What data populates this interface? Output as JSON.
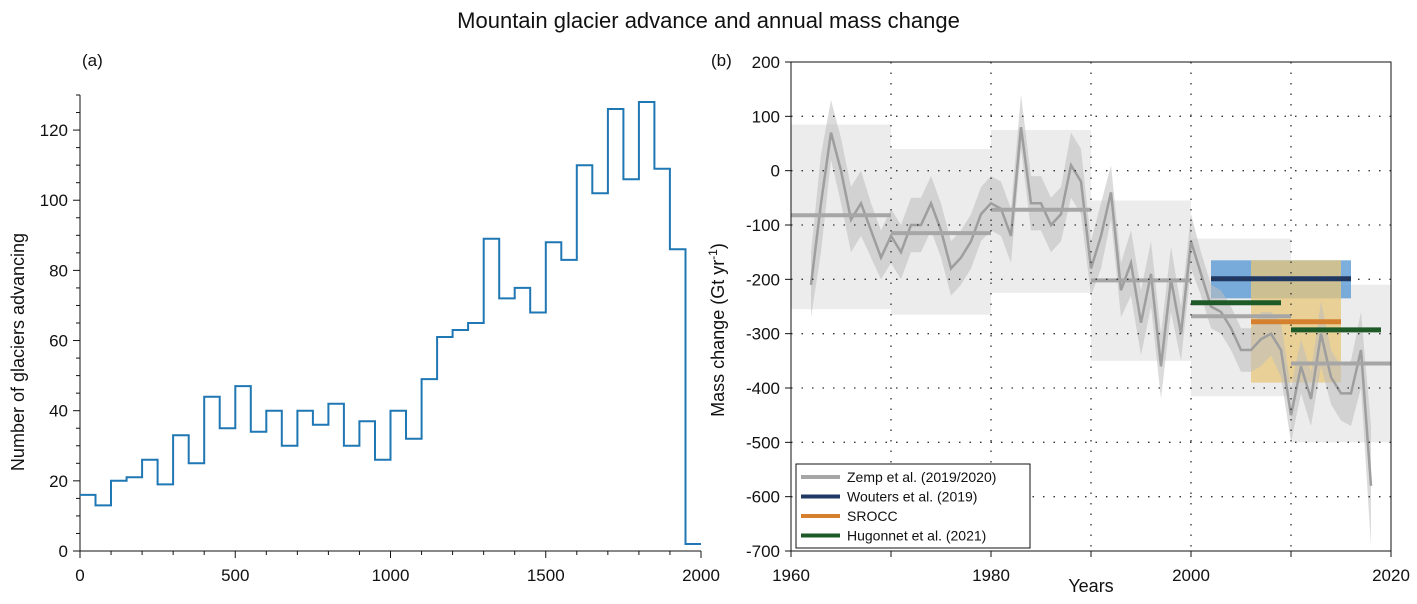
{
  "title": "Mountain glacier advance and annual mass change",
  "colors": {
    "advance_line": "#1f77b4",
    "zemp": "#a6a6a6",
    "wouters": "#1f3864",
    "wouters_band": "#5b9bd5",
    "srocc": "#d4802f",
    "srocc_band": "#e8c77a",
    "hugonnet": "#1e5a28",
    "band_light": "#ececec"
  },
  "chart_data": [
    {
      "type": "line",
      "step": true,
      "panel_label": "(a)",
      "xlabel": "",
      "ylabel": "Number of glaciers advancing",
      "xlim": [
        0,
        2000
      ],
      "ylim": [
        0,
        130
      ],
      "xticks": [
        0,
        500,
        1000,
        1500,
        2000
      ],
      "yticks": [
        0,
        20,
        40,
        60,
        80,
        100,
        120
      ],
      "bin_width": 50,
      "series": [
        {
          "x": [
            0,
            50,
            100,
            150,
            200,
            250,
            300,
            350,
            400,
            450,
            500,
            550,
            600,
            650,
            700,
            750,
            800,
            850,
            900,
            950,
            1000,
            1050,
            1100,
            1150,
            1200,
            1250,
            1300,
            1350,
            1400,
            1450,
            1500,
            1550,
            1600,
            1650,
            1700,
            1750,
            1800,
            1850,
            1900,
            1950
          ],
          "values": [
            16,
            13,
            20,
            21,
            26,
            19,
            33,
            25,
            44,
            35,
            47,
            34,
            40,
            30,
            40,
            36,
            42,
            30,
            37,
            26,
            40,
            32,
            49,
            61,
            63,
            65,
            89,
            72,
            75,
            68,
            88,
            83,
            110,
            102,
            126,
            106,
            128,
            109,
            86,
            2
          ]
        }
      ]
    },
    {
      "type": "line",
      "panel_label": "(b)",
      "xlabel": "Years",
      "ylabel": "Mass change (Gt yr",
      "ylabel_sup": "-1",
      "ylabel_end": ")",
      "xlim": [
        1960,
        2020
      ],
      "ylim": [
        -700,
        200
      ],
      "xticks": [
        1960,
        1980,
        2000,
        2020
      ],
      "yticks": [
        -700,
        -600,
        -500,
        -400,
        -300,
        -200,
        -100,
        0,
        100,
        200
      ],
      "legend_position": "bottom-left",
      "legend": [
        {
          "name": "Zemp et al. (2019/2020)",
          "color": "#a6a6a6"
        },
        {
          "name": "Wouters et al. (2019)",
          "color": "#1f3864"
        },
        {
          "name": "SROCC",
          "color": "#d4802f"
        },
        {
          "name": "Hugonnet et al. (2021)",
          "color": "#1e5a28"
        }
      ],
      "annual_series": {
        "x": [
          1962,
          1963,
          1964,
          1965,
          1966,
          1967,
          1968,
          1969,
          1970,
          1971,
          1972,
          1973,
          1974,
          1975,
          1976,
          1977,
          1978,
          1979,
          1980,
          1981,
          1982,
          1983,
          1984,
          1985,
          1986,
          1987,
          1988,
          1989,
          1990,
          1991,
          1992,
          1993,
          1994,
          1995,
          1996,
          1997,
          1998,
          1999,
          2000,
          2001,
          2002,
          2003,
          2004,
          2005,
          2006,
          2007,
          2008,
          2009,
          2010,
          2011,
          2012,
          2013,
          2014,
          2015,
          2016,
          2017,
          2018
        ],
        "values": [
          -210,
          -60,
          70,
          0,
          -90,
          -60,
          -110,
          -160,
          -120,
          -150,
          -100,
          -100,
          -60,
          -110,
          -180,
          -160,
          -130,
          -80,
          -60,
          -70,
          -120,
          80,
          -60,
          -60,
          -100,
          -80,
          10,
          -20,
          -180,
          -120,
          -40,
          -220,
          -170,
          -280,
          -190,
          -360,
          -200,
          -300,
          -130,
          -190,
          -250,
          -260,
          -290,
          -330,
          -330,
          -310,
          -300,
          -330,
          -450,
          -360,
          -420,
          -300,
          -380,
          -410,
          -410,
          -330,
          -580
        ],
        "lower": [
          -270,
          -150,
          20,
          -60,
          -150,
          -120,
          -160,
          -200,
          -170,
          -200,
          -150,
          -150,
          -110,
          -160,
          -230,
          -210,
          -180,
          -130,
          -110,
          -120,
          -170,
          40,
          -110,
          -110,
          -150,
          -130,
          -50,
          -80,
          -230,
          -180,
          -90,
          -270,
          -230,
          -340,
          -250,
          -420,
          -260,
          -350,
          -180,
          -230,
          -290,
          -300,
          -330,
          -370,
          -370,
          -360,
          -340,
          -380,
          -500,
          -410,
          -470,
          -360,
          -430,
          -460,
          -470,
          -400,
          -690
        ],
        "upper": [
          -150,
          30,
          130,
          60,
          -30,
          0,
          -60,
          -110,
          -70,
          -100,
          -50,
          -50,
          -10,
          -60,
          -130,
          -110,
          -80,
          -30,
          -10,
          -20,
          -70,
          140,
          -10,
          -10,
          -50,
          -30,
          70,
          40,
          -130,
          -60,
          10,
          -170,
          -110,
          -220,
          -130,
          -300,
          -140,
          -250,
          -80,
          -150,
          -210,
          -220,
          -250,
          -290,
          -290,
          -260,
          -260,
          -280,
          -400,
          -310,
          -370,
          -240,
          -330,
          -360,
          -350,
          -260,
          -470
        ]
      },
      "period_means": [
        {
          "source": "Zemp et al. (2019/2020)",
          "x0": 1960,
          "x1": 1970,
          "value": -82,
          "band": [
            -255,
            85
          ]
        },
        {
          "source": "Zemp et al. (2019/2020)",
          "x0": 1970,
          "x1": 1980,
          "value": -115,
          "band": [
            -265,
            40
          ]
        },
        {
          "source": "Zemp et al. (2019/2020)",
          "x0": 1980,
          "x1": 1990,
          "value": -72,
          "band": [
            -225,
            75
          ]
        },
        {
          "source": "Zemp et al. (2019/2020)",
          "x0": 1990,
          "x1": 2000,
          "value": -202,
          "band": [
            -350,
            -55
          ]
        },
        {
          "source": "Zemp et al. (2019/2020)",
          "x0": 2000,
          "x1": 2010,
          "value": -268,
          "band": [
            -415,
            -125
          ]
        },
        {
          "source": "Zemp et al. (2019/2020)",
          "x0": 2010,
          "x1": 2020,
          "value": -355,
          "band": [
            -500,
            -210
          ]
        },
        {
          "source": "Wouters et al. (2019)",
          "x0": 2002,
          "x1": 2016,
          "value": -199,
          "band": [
            -235,
            -165
          ]
        },
        {
          "source": "SROCC",
          "x0": 2006,
          "x1": 2015,
          "value": -278,
          "band": [
            -390,
            -165
          ]
        },
        {
          "source": "Hugonnet et al. (2021)",
          "x0": 2000,
          "x1": 2009,
          "value": -243
        },
        {
          "source": "Hugonnet et al. (2021)",
          "x0": 2010,
          "x1": 2019,
          "value": -293
        }
      ]
    }
  ]
}
